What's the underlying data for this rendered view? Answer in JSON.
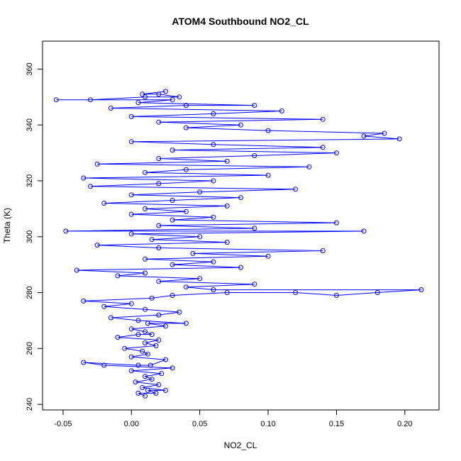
{
  "chart_data": {
    "type": "scatter",
    "title": "ATOM4 Southbound NO2_CL",
    "xlabel": "NO2_CL",
    "ylabel": "Theta (K)",
    "xlim": [
      -0.065,
      0.225
    ],
    "ylim": [
      238,
      370
    ],
    "x_ticks": [
      -0.05,
      0.0,
      0.05,
      0.1,
      0.15,
      0.2
    ],
    "x_tick_labels": [
      "-0.05",
      "0.00",
      "0.05",
      "0.10",
      "0.15",
      "0.20"
    ],
    "y_ticks": [
      240,
      260,
      280,
      300,
      320,
      340,
      360
    ],
    "y_tick_labels": [
      "240",
      "260",
      "280",
      "300",
      "320",
      "340",
      "360"
    ],
    "grid": false,
    "legend": "none",
    "marker": "open-circle",
    "connected": true,
    "color": "#0000ff",
    "points": [
      [
        0.01,
        243
      ],
      [
        0.005,
        244
      ],
      [
        0.018,
        244
      ],
      [
        0.012,
        245
      ],
      [
        0.025,
        245
      ],
      [
        0.008,
        246
      ],
      [
        0.02,
        247
      ],
      [
        0.003,
        248
      ],
      [
        0.015,
        249
      ],
      [
        0.01,
        250
      ],
      [
        0.022,
        251
      ],
      [
        0.0,
        252
      ],
      [
        0.03,
        253
      ],
      [
        -0.02,
        254
      ],
      [
        -0.035,
        255
      ],
      [
        0.005,
        254
      ],
      [
        0.014,
        254
      ],
      [
        0.025,
        256
      ],
      [
        0.0,
        257
      ],
      [
        0.012,
        258
      ],
      [
        0.008,
        259
      ],
      [
        -0.005,
        260
      ],
      [
        0.018,
        261
      ],
      [
        0.01,
        262
      ],
      [
        0.02,
        263
      ],
      [
        -0.01,
        264
      ],
      [
        0.005,
        265
      ],
      [
        0.015,
        265
      ],
      [
        0.01,
        266
      ],
      [
        0.0,
        267
      ],
      [
        0.025,
        268
      ],
      [
        0.012,
        269
      ],
      [
        0.04,
        269
      ],
      [
        0.005,
        270
      ],
      [
        -0.015,
        271
      ],
      [
        0.02,
        272
      ],
      [
        0.035,
        273
      ],
      [
        0.01,
        274
      ],
      [
        -0.02,
        275
      ],
      [
        0.0,
        276
      ],
      [
        -0.035,
        277
      ],
      [
        0.015,
        278
      ],
      [
        0.03,
        279
      ],
      [
        0.07,
        280
      ],
      [
        0.12,
        280
      ],
      [
        0.15,
        279
      ],
      [
        0.18,
        280
      ],
      [
        0.212,
        281
      ],
      [
        0.06,
        281
      ],
      [
        0.04,
        282
      ],
      [
        0.09,
        283
      ],
      [
        0.02,
        284
      ],
      [
        0.05,
        285
      ],
      [
        -0.01,
        286
      ],
      [
        0.01,
        287
      ],
      [
        -0.04,
        288
      ],
      [
        0.08,
        289
      ],
      [
        0.03,
        290
      ],
      [
        0.06,
        291
      ],
      [
        0.01,
        292
      ],
      [
        0.1,
        293
      ],
      [
        0.045,
        294
      ],
      [
        0.14,
        295
      ],
      [
        0.02,
        296
      ],
      [
        -0.025,
        297
      ],
      [
        0.07,
        298
      ],
      [
        0.015,
        299
      ],
      [
        0.05,
        300
      ],
      [
        0.0,
        301
      ],
      [
        0.17,
        302
      ],
      [
        -0.048,
        302
      ],
      [
        0.09,
        303
      ],
      [
        0.02,
        304
      ],
      [
        0.15,
        305
      ],
      [
        0.03,
        306
      ],
      [
        0.06,
        307
      ],
      [
        0.0,
        308
      ],
      [
        0.04,
        309
      ],
      [
        0.01,
        310
      ],
      [
        0.07,
        311
      ],
      [
        -0.02,
        312
      ],
      [
        0.03,
        313
      ],
      [
        0.08,
        314
      ],
      [
        0.0,
        315
      ],
      [
        0.05,
        316
      ],
      [
        0.12,
        317
      ],
      [
        -0.03,
        318
      ],
      [
        0.02,
        319
      ],
      [
        0.06,
        320
      ],
      [
        -0.035,
        321
      ],
      [
        0.1,
        322
      ],
      [
        0.01,
        323
      ],
      [
        0.04,
        324
      ],
      [
        0.13,
        325
      ],
      [
        -0.025,
        326
      ],
      [
        0.07,
        327
      ],
      [
        0.02,
        328
      ],
      [
        0.09,
        329
      ],
      [
        0.15,
        330
      ],
      [
        0.03,
        331
      ],
      [
        0.14,
        332
      ],
      [
        0.06,
        333
      ],
      [
        0.0,
        334
      ],
      [
        0.196,
        335
      ],
      [
        0.17,
        336
      ],
      [
        0.185,
        337
      ],
      [
        0.1,
        338
      ],
      [
        0.04,
        339
      ],
      [
        0.08,
        340
      ],
      [
        0.02,
        341
      ],
      [
        0.14,
        342
      ],
      [
        0.0,
        343
      ],
      [
        0.06,
        344
      ],
      [
        0.11,
        345
      ],
      [
        -0.015,
        346
      ],
      [
        0.04,
        347
      ],
      [
        0.09,
        347
      ],
      [
        0.005,
        348
      ],
      [
        0.03,
        349
      ],
      [
        -0.055,
        349
      ],
      [
        -0.03,
        349
      ],
      [
        0.01,
        350
      ],
      [
        0.035,
        350
      ],
      [
        0.02,
        351
      ],
      [
        0.008,
        351
      ],
      [
        0.025,
        352
      ]
    ]
  }
}
